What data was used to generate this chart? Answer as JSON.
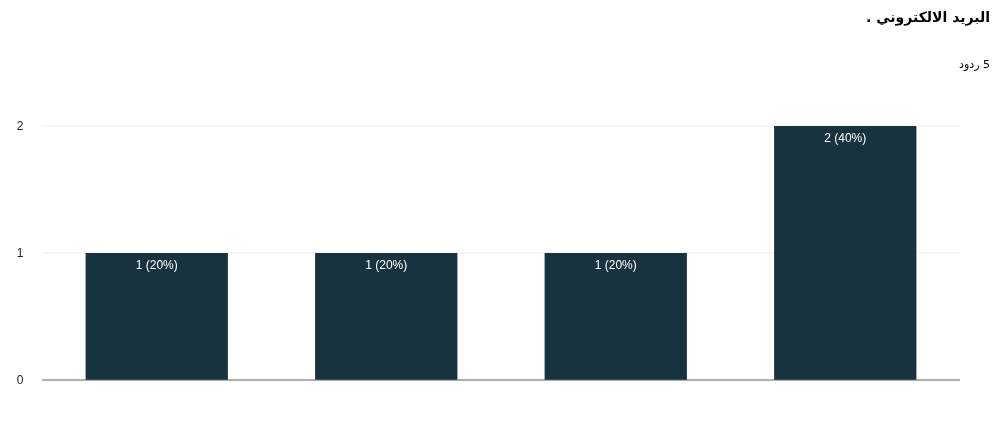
{
  "chart_data": {
    "type": "bar",
    "title": "البريد الالكتروني .",
    "subtitle": "5 ردود",
    "categories": [
      null,
      null,
      null,
      null
    ],
    "values": [
      1,
      1,
      1,
      2
    ],
    "color": "#173340",
    "value_labels": [
      "1 (20%)",
      "1 (20%)",
      "1 (20%)",
      "2 (40%)"
    ],
    "ylim": [
      0,
      2
    ],
    "yticks": [
      0,
      1,
      2
    ],
    "grid": "y"
  }
}
